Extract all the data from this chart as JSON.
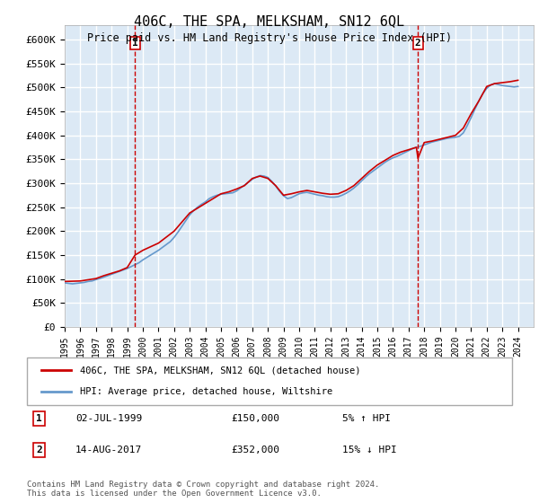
{
  "title": "406C, THE SPA, MELKSHAM, SN12 6QL",
  "subtitle": "Price paid vs. HM Land Registry's House Price Index (HPI)",
  "ylabel_ticks": [
    "£0",
    "£50K",
    "£100K",
    "£150K",
    "£200K",
    "£250K",
    "£300K",
    "£350K",
    "£400K",
    "£450K",
    "£500K",
    "£550K",
    "£600K"
  ],
  "ytick_vals": [
    0,
    50000,
    100000,
    150000,
    200000,
    250000,
    300000,
    350000,
    400000,
    450000,
    500000,
    550000,
    600000
  ],
  "ylim": [
    0,
    630000
  ],
  "xlim_start": 1995.0,
  "xlim_end": 2025.0,
  "background_color": "#dce9f5",
  "plot_bg": "#dce9f5",
  "grid_color": "#ffffff",
  "red_line_color": "#cc0000",
  "blue_line_color": "#6699cc",
  "vline_color": "#cc0000",
  "vline_style": "--",
  "marker1_x": 1999.5,
  "marker2_x": 2017.6,
  "marker1_label": "1",
  "marker2_label": "2",
  "annotation1": [
    "1",
    "02-JUL-1999",
    "£150,000",
    "5% ↑ HPI"
  ],
  "annotation2": [
    "2",
    "14-AUG-2017",
    "£352,000",
    "15% ↓ HPI"
  ],
  "legend_line1": "406C, THE SPA, MELKSHAM, SN12 6QL (detached house)",
  "legend_line2": "HPI: Average price, detached house, Wiltshire",
  "copyright": "Contains HM Land Registry data © Crown copyright and database right 2024.\nThis data is licensed under the Open Government Licence v3.0.",
  "hpi_years": [
    1995.0,
    1995.25,
    1995.5,
    1995.75,
    1996.0,
    1996.25,
    1996.5,
    1996.75,
    1997.0,
    1997.25,
    1997.5,
    1997.75,
    1998.0,
    1998.25,
    1998.5,
    1998.75,
    1999.0,
    1999.25,
    1999.5,
    1999.75,
    2000.0,
    2000.25,
    2000.5,
    2000.75,
    2001.0,
    2001.25,
    2001.5,
    2001.75,
    2002.0,
    2002.25,
    2002.5,
    2002.75,
    2003.0,
    2003.25,
    2003.5,
    2003.75,
    2004.0,
    2004.25,
    2004.5,
    2004.75,
    2005.0,
    2005.25,
    2005.5,
    2005.75,
    2006.0,
    2006.25,
    2006.5,
    2006.75,
    2007.0,
    2007.25,
    2007.5,
    2007.75,
    2008.0,
    2008.25,
    2008.5,
    2008.75,
    2009.0,
    2009.25,
    2009.5,
    2009.75,
    2010.0,
    2010.25,
    2010.5,
    2010.75,
    2011.0,
    2011.25,
    2011.5,
    2011.75,
    2012.0,
    2012.25,
    2012.5,
    2012.75,
    2013.0,
    2013.25,
    2013.5,
    2013.75,
    2014.0,
    2014.25,
    2014.5,
    2014.75,
    2015.0,
    2015.25,
    2015.5,
    2015.75,
    2016.0,
    2016.25,
    2016.5,
    2016.75,
    2017.0,
    2017.25,
    2017.5,
    2017.75,
    2018.0,
    2018.25,
    2018.5,
    2018.75,
    2019.0,
    2019.25,
    2019.5,
    2019.75,
    2020.0,
    2020.25,
    2020.5,
    2020.75,
    2021.0,
    2021.25,
    2021.5,
    2021.75,
    2022.0,
    2022.25,
    2022.5,
    2022.75,
    2023.0,
    2023.25,
    2023.5,
    2023.75,
    2024.0
  ],
  "hpi_values": [
    92000,
    91000,
    90000,
    91000,
    92000,
    93000,
    95000,
    96000,
    99000,
    101000,
    104000,
    107000,
    110000,
    113000,
    116000,
    119000,
    122000,
    126000,
    130000,
    134000,
    140000,
    145000,
    150000,
    155000,
    160000,
    166000,
    172000,
    178000,
    187000,
    198000,
    210000,
    222000,
    234000,
    243000,
    250000,
    256000,
    261000,
    268000,
    272000,
    275000,
    277000,
    278000,
    279000,
    280000,
    284000,
    290000,
    296000,
    302000,
    308000,
    313000,
    316000,
    315000,
    312000,
    304000,
    294000,
    283000,
    274000,
    268000,
    270000,
    274000,
    278000,
    280000,
    281000,
    279000,
    277000,
    275000,
    274000,
    272000,
    271000,
    271000,
    272000,
    275000,
    279000,
    284000,
    290000,
    297000,
    305000,
    313000,
    320000,
    326000,
    332000,
    338000,
    344000,
    349000,
    353000,
    356000,
    360000,
    364000,
    368000,
    372000,
    375000,
    377000,
    380000,
    383000,
    386000,
    388000,
    390000,
    392000,
    394000,
    395000,
    396000,
    398000,
    405000,
    420000,
    437000,
    455000,
    472000,
    487000,
    498000,
    505000,
    508000,
    506000,
    504000,
    503000,
    502000,
    501000,
    502000
  ],
  "property_points_x": [
    1999.5,
    2017.6
  ],
  "property_points_y": [
    150000,
    352000
  ],
  "property_line_x": [
    1995.0,
    1996.0,
    1997.0,
    1997.5,
    1998.0,
    1998.5,
    1999.0,
    1999.5,
    2000.0,
    2001.0,
    2002.0,
    2003.0,
    2004.0,
    2005.0,
    2005.5,
    2006.0,
    2006.5,
    2007.0,
    2007.5,
    2008.0,
    2008.5,
    2009.0,
    2009.5,
    2010.0,
    2010.5,
    2011.0,
    2011.5,
    2012.0,
    2012.5,
    2013.0,
    2013.5,
    2014.0,
    2014.5,
    2015.0,
    2015.5,
    2016.0,
    2016.5,
    2017.0,
    2017.5,
    2017.6,
    2018.0,
    2018.5,
    2019.0,
    2019.5,
    2020.0,
    2020.5,
    2021.0,
    2021.5,
    2022.0,
    2022.5,
    2023.0,
    2023.5,
    2024.0
  ],
  "property_line_y": [
    95000,
    96000,
    101000,
    107000,
    112000,
    117000,
    124000,
    150000,
    160000,
    175000,
    200000,
    238000,
    258000,
    278000,
    282000,
    288000,
    295000,
    310000,
    315000,
    310000,
    295000,
    275000,
    278000,
    282000,
    285000,
    282000,
    279000,
    277000,
    278000,
    285000,
    295000,
    310000,
    325000,
    338000,
    348000,
    358000,
    365000,
    370000,
    375000,
    352000,
    385000,
    388000,
    392000,
    396000,
    400000,
    415000,
    445000,
    472000,
    502000,
    508000,
    510000,
    512000,
    515000
  ],
  "xtick_years": [
    1995,
    1996,
    1997,
    1998,
    1999,
    2000,
    2001,
    2002,
    2003,
    2004,
    2005,
    2006,
    2007,
    2008,
    2009,
    2010,
    2011,
    2012,
    2013,
    2014,
    2015,
    2016,
    2017,
    2018,
    2019,
    2020,
    2021,
    2022,
    2023,
    2024
  ]
}
